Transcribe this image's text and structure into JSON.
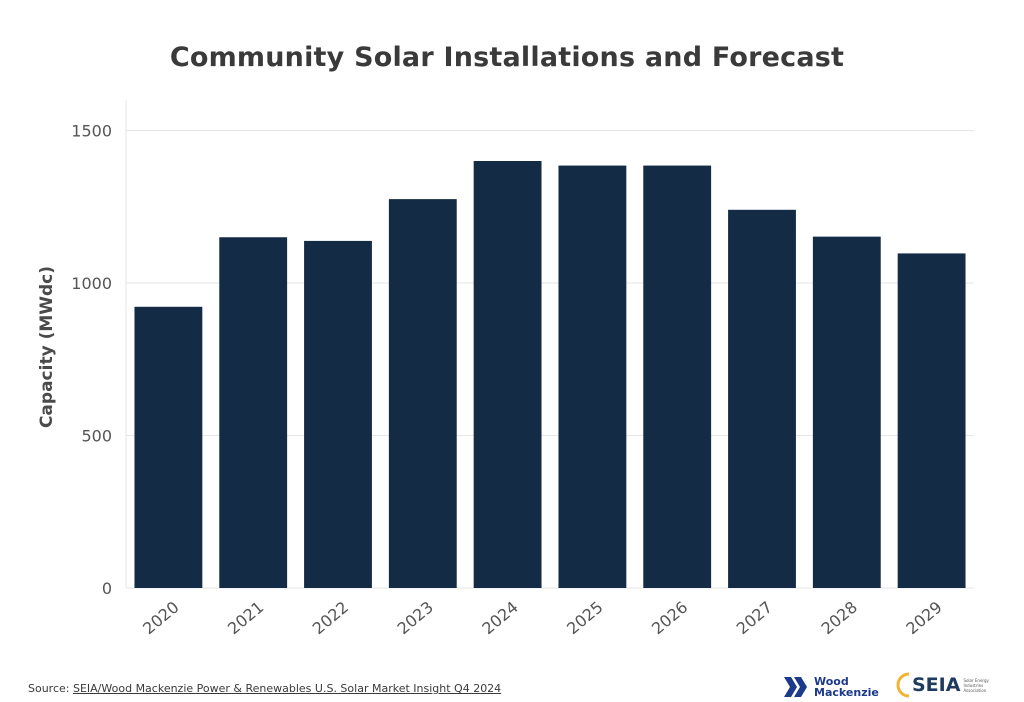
{
  "chart_data": {
    "type": "bar",
    "title": "Community Solar Installations and Forecast",
    "xlabel": "",
    "ylabel": "Capacity (MWdc)",
    "categories": [
      "2020",
      "2021",
      "2022",
      "2023",
      "2024",
      "2025",
      "2026",
      "2027",
      "2028",
      "2029"
    ],
    "values": [
      922,
      1150,
      1138,
      1275,
      1400,
      1385,
      1385,
      1240,
      1152,
      1097
    ],
    "ylim": [
      0,
      1600
    ],
    "yticks": [
      0,
      500,
      1000,
      1500
    ],
    "grid": true,
    "bar_color": "#132b45"
  },
  "footer": {
    "source_prefix": "Source: ",
    "source_text": "SEIA/Wood Mackenzie Power & Renewables U.S. Solar Market Insight Q4 2024"
  },
  "logos": {
    "wood_mackenzie_line1": "Wood",
    "wood_mackenzie_line2": "Mackenzie",
    "seia": "SEIA",
    "seia_small": "Solar Energy Industries Association"
  }
}
